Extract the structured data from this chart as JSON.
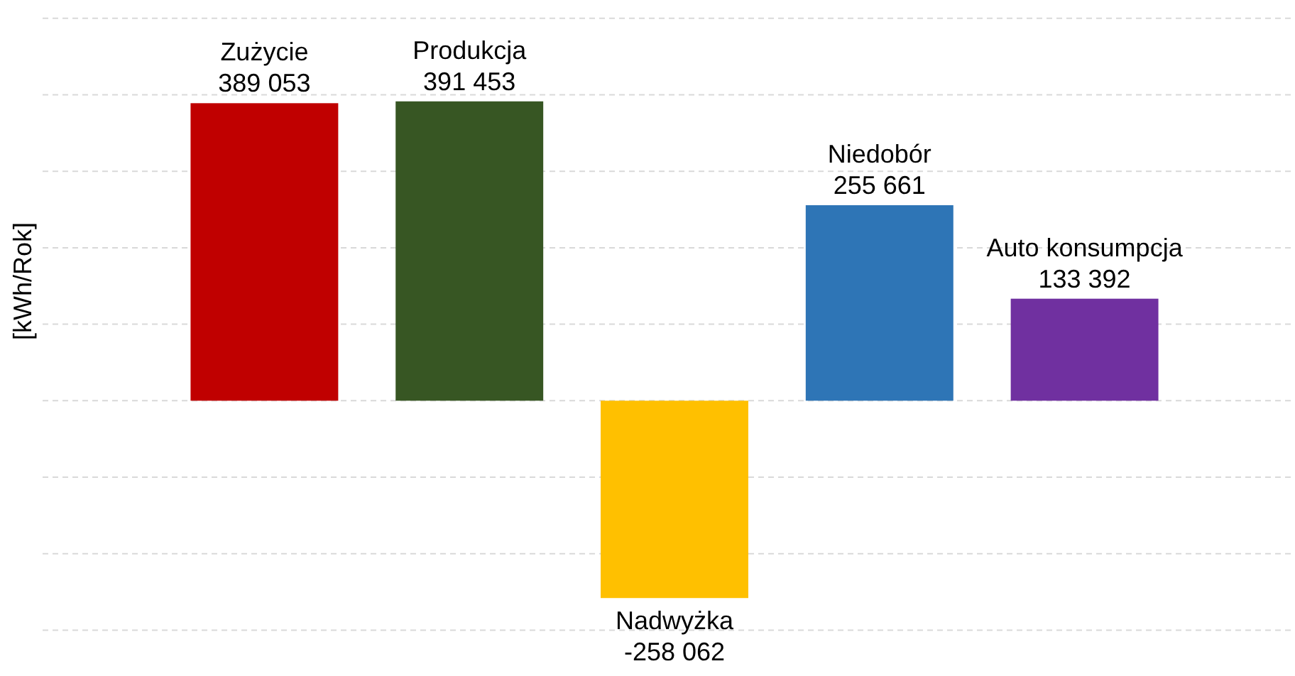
{
  "chart_data": {
    "type": "bar",
    "ylabel": "[kWh/Rok]",
    "categories": [
      "Zużycie",
      "Produkcja",
      "Nadwyżka",
      "Niedobór",
      "Auto konsumpcja"
    ],
    "values": [
      389053,
      391453,
      -258062,
      255661,
      133392
    ],
    "value_labels": [
      "389 053",
      "391 453",
      "-258 062",
      "255 661",
      "133 392"
    ],
    "colors": [
      "#c00000",
      "#375623",
      "#ffc000",
      "#2e75b6",
      "#7030a0"
    ],
    "yticks": [
      -300000,
      -200000,
      -100000,
      0,
      100000,
      200000,
      300000,
      400000,
      500000
    ],
    "tick_labels": false,
    "grid": "y"
  }
}
